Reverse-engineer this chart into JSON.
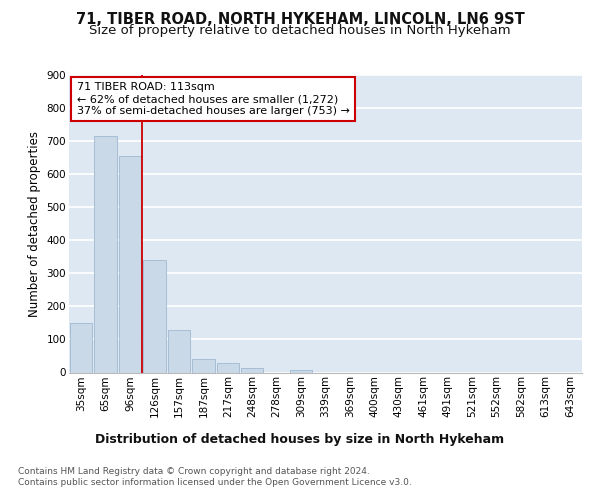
{
  "title_line1": "71, TIBER ROAD, NORTH HYKEHAM, LINCOLN, LN6 9ST",
  "title_line2": "Size of property relative to detached houses in North Hykeham",
  "xlabel": "Distribution of detached houses by size in North Hykeham",
  "ylabel": "Number of detached properties",
  "bar_categories": [
    "35sqm",
    "65sqm",
    "96sqm",
    "126sqm",
    "157sqm",
    "187sqm",
    "217sqm",
    "248sqm",
    "278sqm",
    "309sqm",
    "339sqm",
    "369sqm",
    "400sqm",
    "430sqm",
    "461sqm",
    "491sqm",
    "521sqm",
    "552sqm",
    "582sqm",
    "613sqm",
    "643sqm"
  ],
  "bar_values": [
    150,
    715,
    655,
    340,
    130,
    42,
    30,
    13,
    0,
    8,
    0,
    0,
    0,
    0,
    0,
    0,
    0,
    0,
    0,
    0,
    0
  ],
  "bar_color": "#c9d9e8",
  "bar_edge_color": "#a0b8d0",
  "background_color": "#dde8f3",
  "grid_color": "#ffffff",
  "vline_color": "#cc0000",
  "annotation_text": "71 TIBER ROAD: 113sqm\n← 62% of detached houses are smaller (1,272)\n37% of semi-detached houses are larger (753) →",
  "annotation_box_color": "#ffffff",
  "annotation_box_edge": "#cc0000",
  "ylim": [
    0,
    900
  ],
  "yticks": [
    0,
    100,
    200,
    300,
    400,
    500,
    600,
    700,
    800,
    900
  ],
  "footer_text": "Contains HM Land Registry data © Crown copyright and database right 2024.\nContains public sector information licensed under the Open Government Licence v3.0.",
  "title_fontsize": 10.5,
  "subtitle_fontsize": 9.5,
  "xlabel_fontsize": 9,
  "ylabel_fontsize": 8.5,
  "tick_fontsize": 7.5,
  "annotation_fontsize": 8,
  "footer_fontsize": 6.5
}
